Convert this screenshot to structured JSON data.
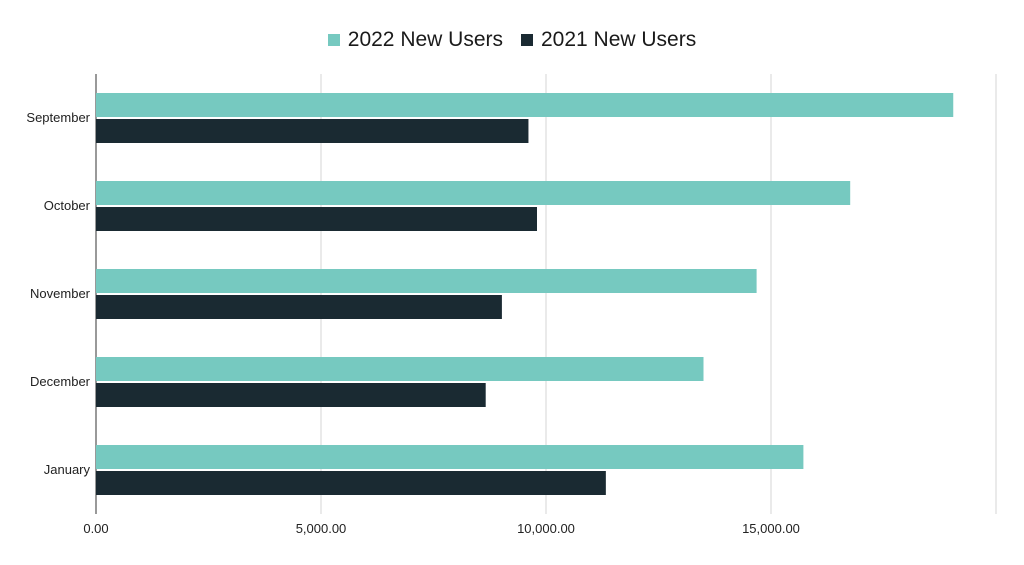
{
  "chart_data": {
    "type": "bar",
    "orientation": "horizontal",
    "categories": [
      "September",
      "October",
      "November",
      "December",
      "January"
    ],
    "series": [
      {
        "name": "2022 New Users",
        "color": "#76c9c0",
        "values": [
          19050,
          16760,
          14680,
          13500,
          15720
        ]
      },
      {
        "name": "2021 New Users",
        "color": "#1a2a32",
        "values": [
          9610,
          9800,
          9020,
          8660,
          11330
        ]
      }
    ],
    "xlim": [
      0,
      20000
    ],
    "xticks": [
      0,
      5000,
      10000,
      15000
    ],
    "xtick_labels": [
      "0.00",
      "5,000.00",
      "10,000.00",
      "15,000.00"
    ],
    "grid": true,
    "legend": "top-center",
    "title": "",
    "xlabel": "",
    "ylabel": ""
  }
}
